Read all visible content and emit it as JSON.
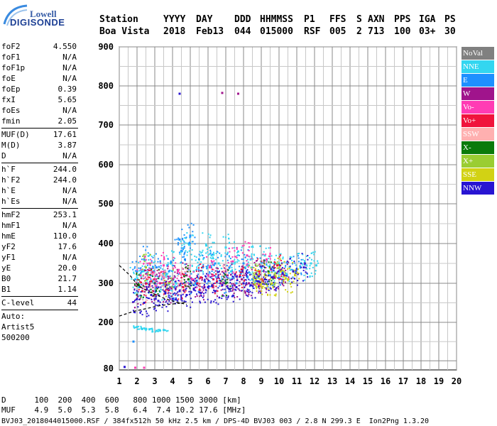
{
  "logo": {
    "top": "Lowell",
    "bottom": "DIGISONDE"
  },
  "header": {
    "row1": [
      "Station",
      "YYYY",
      "DAY",
      "DDD",
      "HHMMSS",
      "P1",
      "FFS",
      "S",
      "AXN",
      "PPS",
      "IGA",
      "PS"
    ],
    "row2": [
      "Boa Vista",
      "2018",
      "Feb13",
      "044",
      "015000",
      "RSF",
      "005",
      "2",
      "713",
      "100",
      "03+",
      "30"
    ]
  },
  "params": {
    "group1": [
      {
        "k": "foF2",
        "v": "4.550"
      },
      {
        "k": "foF1",
        "v": "N/A"
      },
      {
        "k": "foF1p",
        "v": "N/A"
      },
      {
        "k": "foE",
        "v": "N/A"
      },
      {
        "k": "foEp",
        "v": "0.39"
      },
      {
        "k": "fxI",
        "v": "5.65"
      },
      {
        "k": "foEs",
        "v": "N/A"
      },
      {
        "k": "fmin",
        "v": "2.05"
      }
    ],
    "group2": [
      {
        "k": "MUF(D)",
        "v": "17.61"
      },
      {
        "k": "M(D)",
        "v": "3.87"
      },
      {
        "k": "D",
        "v": "N/A"
      }
    ],
    "group3": [
      {
        "k": "h`F",
        "v": "244.0"
      },
      {
        "k": "h`F2",
        "v": "244.0"
      },
      {
        "k": "h`E",
        "v": "N/A"
      },
      {
        "k": "h`Es",
        "v": "N/A"
      }
    ],
    "group4": [
      {
        "k": "hmF2",
        "v": "253.1"
      },
      {
        "k": "hmF1",
        "v": "N/A"
      },
      {
        "k": "hmE",
        "v": "110.0"
      },
      {
        "k": "yF2",
        "v": "17.6"
      },
      {
        "k": "yF1",
        "v": "N/A"
      },
      {
        "k": "yE",
        "v": "20.0"
      },
      {
        "k": "B0",
        "v": "21.7"
      },
      {
        "k": "B1",
        "v": "1.14"
      }
    ],
    "group5": [
      {
        "k": "C-level",
        "v": "44"
      }
    ],
    "auto": [
      "Auto:",
      "Artist5",
      "500200"
    ]
  },
  "legend": [
    {
      "label": "NoVal",
      "color": "#808080"
    },
    {
      "label": "NNE",
      "color": "#33d6f0"
    },
    {
      "label": "E",
      "color": "#1e90ff"
    },
    {
      "label": "W",
      "color": "#a0148c"
    },
    {
      "label": "Vo-",
      "color": "#ff3cb4"
    },
    {
      "label": "Vo+",
      "color": "#f0143c"
    },
    {
      "label": "SSW",
      "color": "#ffb0b0"
    },
    {
      "label": "X-",
      "color": "#0a7a0a"
    },
    {
      "label": "X+",
      "color": "#9acd32"
    },
    {
      "label": "SSE",
      "color": "#d2d214"
    },
    {
      "label": "NNW",
      "color": "#2814d2"
    }
  ],
  "footer": {
    "line1": "D      100  200  400  600   800 1000 1500 3000 [km]",
    "line2": "MUF    4.9  5.0  5.3  5.8   6.4  7.4 10.2 17.6 [MHz]",
    "line3": "BVJ03_2018044015000.RSF / 384fx512h 50 kHz 2.5 km / DPS-4D BVJ03 003 / 2.8 N 299.3 E  Ion2Png 1.3.20"
  },
  "chart_data": {
    "type": "scatter",
    "xlim": [
      1,
      20
    ],
    "ylim": [
      80,
      900
    ],
    "x_ticks": [
      1,
      2,
      3,
      4,
      5,
      6,
      7,
      8,
      9,
      10,
      11,
      12,
      13,
      14,
      15,
      16,
      17,
      18,
      19,
      20
    ],
    "y_ticks": [
      80,
      200,
      300,
      400,
      500,
      600,
      700,
      800,
      900
    ],
    "grid": true,
    "trace_upper": [
      [
        1.0,
        345
      ],
      [
        1.6,
        320
      ],
      [
        2.1,
        292
      ],
      [
        2.8,
        276
      ],
      [
        3.5,
        262
      ],
      [
        4.2,
        252
      ],
      [
        4.8,
        246
      ]
    ],
    "trace_lower": [
      [
        1.0,
        216
      ],
      [
        1.8,
        228
      ],
      [
        2.5,
        235
      ],
      [
        3.2,
        242
      ],
      [
        3.8,
        246
      ],
      [
        4.4,
        249
      ],
      [
        4.8,
        252
      ]
    ],
    "point_series": [
      {
        "name": "NNE",
        "color": "#33d6f0",
        "points": [
          [
            1.9,
            310
          ],
          [
            2.1,
            290
          ],
          [
            2.3,
            330
          ],
          [
            2.6,
            300
          ],
          [
            2.9,
            340
          ],
          [
            3.2,
            290
          ],
          [
            3.6,
            320
          ],
          [
            3.9,
            350
          ],
          [
            4.2,
            300
          ],
          [
            4.5,
            380
          ],
          [
            4.9,
            400
          ],
          [
            5.2,
            330
          ],
          [
            5.5,
            360
          ],
          [
            5.9,
            395
          ],
          [
            6.2,
            370
          ],
          [
            6.6,
            350
          ],
          [
            7.0,
            390
          ],
          [
            7.3,
            330
          ],
          [
            7.7,
            380
          ],
          [
            8.1,
            340
          ],
          [
            8.4,
            360
          ],
          [
            8.8,
            320
          ],
          [
            9.2,
            370
          ],
          [
            9.6,
            335
          ],
          [
            10.0,
            350
          ],
          [
            10.6,
            340
          ],
          [
            11.2,
            342
          ],
          [
            11.8,
            350
          ],
          [
            12.1,
            345
          ],
          [
            2.0,
            188
          ],
          [
            2.3,
            183
          ],
          [
            2.7,
            182
          ],
          [
            3.1,
            178
          ],
          [
            3.5,
            180
          ]
        ]
      },
      {
        "name": "E",
        "color": "#1e90ff",
        "points": [
          [
            2.0,
            330
          ],
          [
            2.4,
            360
          ],
          [
            2.8,
            320
          ],
          [
            3.1,
            340
          ],
          [
            3.4,
            310
          ],
          [
            3.8,
            330
          ],
          [
            4.1,
            290
          ],
          [
            4.4,
            410
          ],
          [
            4.7,
            360
          ],
          [
            5.0,
            420
          ],
          [
            5.3,
            300
          ],
          [
            5.7,
            340
          ],
          [
            6.0,
            320
          ],
          [
            6.4,
            350
          ],
          [
            6.8,
            310
          ],
          [
            7.2,
            340
          ],
          [
            7.6,
            300
          ],
          [
            8.0,
            350
          ],
          [
            8.5,
            310
          ],
          [
            9.0,
            340
          ],
          [
            9.5,
            320
          ],
          [
            10.2,
            330
          ],
          [
            11.0,
            335
          ],
          [
            1.8,
            150
          ]
        ]
      },
      {
        "name": "W",
        "color": "#a0148c",
        "points": [
          [
            2.0,
            270
          ],
          [
            2.5,
            300
          ],
          [
            2.9,
            280
          ],
          [
            3.3,
            300
          ],
          [
            3.7,
            285
          ],
          [
            4.0,
            310
          ],
          [
            4.4,
            295
          ],
          [
            4.8,
            320
          ],
          [
            5.4,
            300
          ],
          [
            5.8,
            290
          ],
          [
            6.3,
            310
          ],
          [
            6.7,
            300
          ],
          [
            7.1,
            320
          ],
          [
            7.5,
            295
          ],
          [
            7.9,
            310
          ],
          [
            8.3,
            300
          ],
          [
            8.7,
            325
          ],
          [
            9.1,
            305
          ],
          [
            9.7,
            315
          ],
          [
            10.3,
            320
          ],
          [
            6.8,
            782
          ],
          [
            7.7,
            780
          ]
        ]
      },
      {
        "name": "Vo-",
        "color": "#ff3cb4",
        "points": [
          [
            2.2,
            320
          ],
          [
            2.7,
            350
          ],
          [
            3.0,
            310
          ],
          [
            3.5,
            345
          ],
          [
            4.3,
            330
          ],
          [
            5.1,
            310
          ],
          [
            6.1,
            340
          ],
          [
            7.4,
            355
          ],
          [
            8.2,
            370
          ],
          [
            9.3,
            360
          ],
          [
            1.9,
            82
          ],
          [
            2.4,
            82
          ]
        ]
      },
      {
        "name": "Vo+",
        "color": "#f0143c",
        "points": [
          [
            2.3,
            280
          ],
          [
            2.8,
            305
          ],
          [
            3.6,
            300
          ],
          [
            4.6,
            290
          ],
          [
            5.6,
            315
          ],
          [
            6.5,
            305
          ],
          [
            7.8,
            320
          ],
          [
            8.9,
            330
          ],
          [
            9.9,
            345
          ]
        ]
      },
      {
        "name": "SSW",
        "color": "#ffb0b0",
        "points": [
          [
            2.6,
            290
          ],
          [
            3.4,
            320
          ],
          [
            4.5,
            305
          ],
          [
            6.9,
            330
          ]
        ]
      },
      {
        "name": "X-",
        "color": "#0a7a0a",
        "points": [
          [
            2.1,
            295
          ],
          [
            3.0,
            300
          ],
          [
            4.9,
            310
          ],
          [
            7.0,
            300
          ],
          [
            9.4,
            330
          ]
        ]
      },
      {
        "name": "X+",
        "color": "#9acd32",
        "points": [
          [
            2.5,
            340
          ],
          [
            3.8,
            300
          ],
          [
            8.6,
            320
          ],
          [
            9.8,
            325
          ]
        ]
      },
      {
        "name": "SSE",
        "color": "#d2d214",
        "points": [
          [
            8.7,
            310
          ],
          [
            9.2,
            320
          ],
          [
            9.6,
            300
          ],
          [
            10.1,
            330
          ],
          [
            10.5,
            310
          ],
          [
            10.9,
            320
          ],
          [
            9.0,
            298
          ]
        ]
      },
      {
        "name": "NNW",
        "color": "#2814d2",
        "points": [
          [
            2.0,
            260
          ],
          [
            2.4,
            250
          ],
          [
            2.8,
            270
          ],
          [
            3.2,
            255
          ],
          [
            3.6,
            275
          ],
          [
            4.0,
            260
          ],
          [
            4.4,
            280
          ],
          [
            4.8,
            270
          ],
          [
            5.2,
            285
          ],
          [
            5.6,
            275
          ],
          [
            6.0,
            290
          ],
          [
            6.4,
            280
          ],
          [
            6.8,
            295
          ],
          [
            7.2,
            285
          ],
          [
            7.6,
            290
          ],
          [
            8.0,
            300
          ],
          [
            8.4,
            295
          ],
          [
            8.8,
            305
          ],
          [
            9.2,
            310
          ],
          [
            9.6,
            315
          ],
          [
            10.2,
            325
          ],
          [
            10.8,
            330
          ],
          [
            11.4,
            340
          ],
          [
            4.4,
            780
          ],
          [
            1.3,
            84
          ]
        ]
      }
    ]
  }
}
